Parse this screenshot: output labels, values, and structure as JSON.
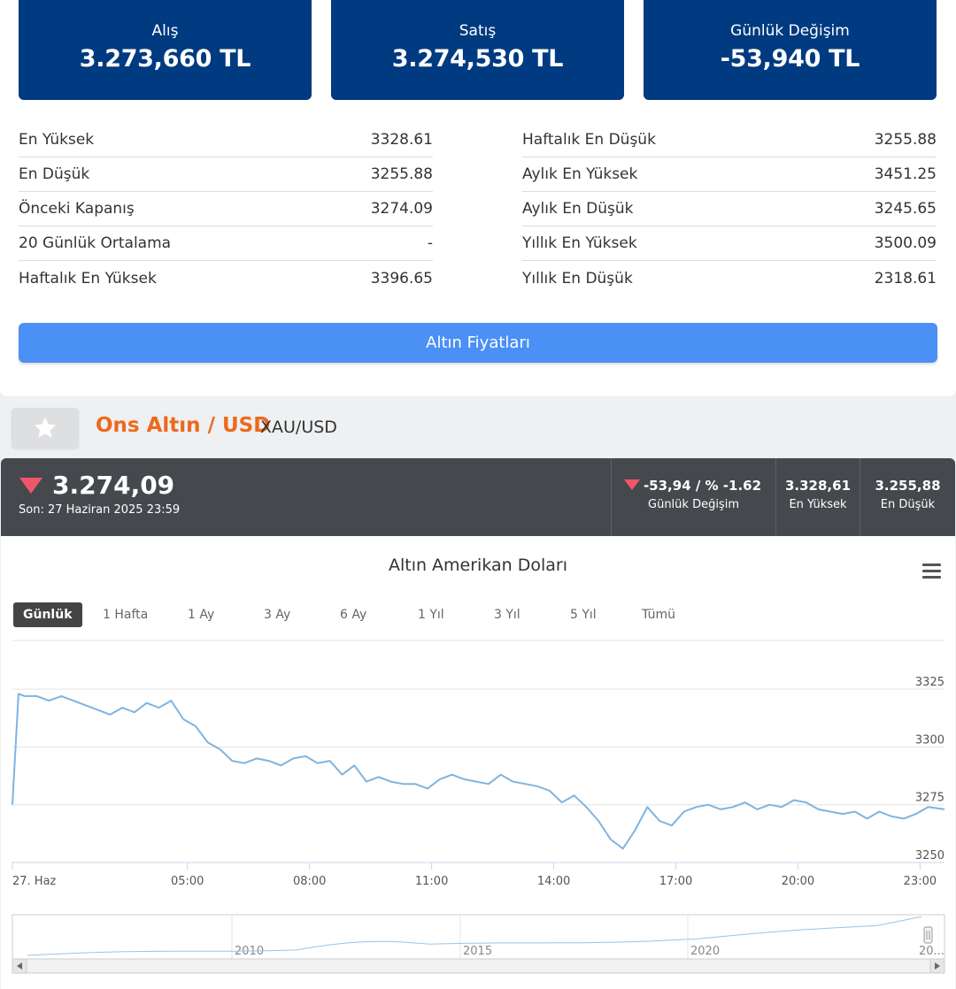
{
  "price_cards": [
    {
      "label": "Alış",
      "value": "3.273,660 TL"
    },
    {
      "label": "Satış",
      "value": "3.274,530 TL"
    },
    {
      "label": "Günlük Değişim",
      "value": "-53,940 TL"
    }
  ],
  "stats_left": [
    {
      "label": "En Yüksek",
      "value": "3328.61"
    },
    {
      "label": "En Düşük",
      "value": "3255.88"
    },
    {
      "label": "Önceki Kapanış",
      "value": "3274.09"
    },
    {
      "label": "20 Günlük Ortalama",
      "value": "-"
    },
    {
      "label": "Haftalık En Yüksek",
      "value": "3396.65"
    }
  ],
  "stats_right": [
    {
      "label": "Haftalık En Düşük",
      "value": "3255.88"
    },
    {
      "label": "Aylık En Yüksek",
      "value": "3451.25"
    },
    {
      "label": "Aylık En Düşük",
      "value": "3245.65"
    },
    {
      "label": "Yıllık En Yüksek",
      "value": "3500.09"
    },
    {
      "label": "Yıllık En Düşük",
      "value": "2318.61"
    }
  ],
  "gold_prices_button": "Altın Fiyatları",
  "instrument": {
    "favorite_icon": "star-icon",
    "title": "Ons Altın / USD",
    "symbol": "XAU/USD"
  },
  "quote": {
    "direction_icon": "down-triangle-icon",
    "price": "3.274,09",
    "last_update": "Son: 27 Haziran 2025 23:59",
    "change": "-53,94 / % -1.62",
    "change_label": "Günlük Değişim",
    "high": "3.328,61",
    "high_label": "En Yüksek",
    "low": "3.255,88",
    "low_label": "En Düşük"
  },
  "range_buttons": [
    "Günlük",
    "1 Hafta",
    "1 Ay",
    "3 Ay",
    "6 Ay",
    "1 Yıl",
    "3 Yıl",
    "5 Yıl",
    "Tümü"
  ],
  "active_range": "Günlük",
  "colors": {
    "card_bg": "#003a80",
    "button_blue": "#4a90f5",
    "title_orange": "#ec6a1c",
    "quote_bar": "#45484d",
    "down_red": "#f0566a",
    "line": "#7fb4e0"
  },
  "chart_data": {
    "type": "line",
    "title": "Altın Amerikan Doları",
    "x_ticks": [
      "27. Haz",
      "05:00",
      "08:00",
      "11:00",
      "14:00",
      "17:00",
      "20:00",
      "23:00"
    ],
    "y_ticks": [
      3250,
      3275,
      3300,
      3325
    ],
    "ylim": [
      3250,
      3330
    ],
    "x_range_hours": [
      0.7,
      23.6
    ],
    "grid": true,
    "series": [
      {
        "x": [
          0.7,
          0.85,
          1.0,
          1.3,
          1.6,
          1.9,
          2.2,
          2.5,
          2.8,
          3.1,
          3.4,
          3.7,
          4.0,
          4.3,
          4.6,
          4.9,
          5.2,
          5.5,
          5.8,
          6.1,
          6.4,
          6.7,
          7.0,
          7.3,
          7.6,
          7.9,
          8.2,
          8.5,
          8.8,
          9.1,
          9.4,
          9.7,
          10.0,
          10.3,
          10.6,
          10.9,
          11.2,
          11.5,
          11.8,
          12.1,
          12.4,
          12.7,
          13.0,
          13.3,
          13.6,
          13.9,
          14.2,
          14.5,
          14.8,
          15.1,
          15.4,
          15.7,
          16.0,
          16.3,
          16.6,
          16.9,
          17.2,
          17.5,
          17.8,
          18.1,
          18.4,
          18.7,
          19.0,
          19.3,
          19.6,
          19.9,
          20.2,
          20.5,
          20.8,
          21.1,
          21.4,
          21.7,
          22.0,
          22.3,
          22.6,
          22.9,
          23.2,
          23.6
        ],
        "y": [
          3275,
          3323,
          3322,
          3322,
          3320,
          3322,
          3320,
          3318,
          3316,
          3314,
          3317,
          3315,
          3319,
          3317,
          3320,
          3312,
          3309,
          3302,
          3299,
          3294,
          3293,
          3295,
          3294,
          3292,
          3295,
          3296,
          3293,
          3294,
          3288,
          3292,
          3285,
          3287,
          3285,
          3284,
          3284,
          3282,
          3286,
          3288,
          3286,
          3285,
          3284,
          3288,
          3285,
          3284,
          3283,
          3281,
          3276,
          3279,
          3274,
          3268,
          3260,
          3256,
          3264,
          3274,
          3268,
          3266,
          3272,
          3274,
          3275,
          3273,
          3274,
          3276,
          3273,
          3275,
          3274,
          3277,
          3276,
          3273,
          3272,
          3271,
          3272,
          3269,
          3272,
          3270,
          3269,
          3271,
          3274,
          3273
        ]
      }
    ],
    "navigator": {
      "x_ticks": [
        "2010",
        "2015",
        "2020",
        "20..."
      ]
    }
  }
}
